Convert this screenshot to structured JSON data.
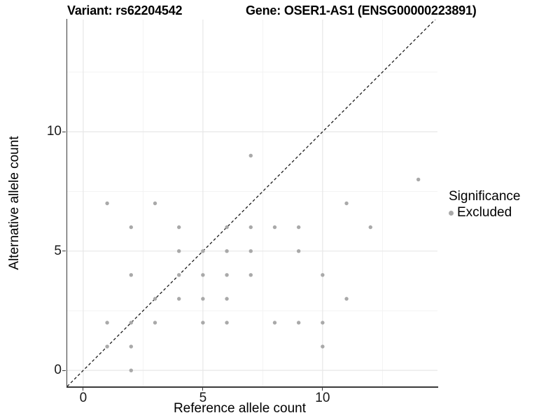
{
  "titles": {
    "variant": "Variant: rs62204542",
    "gene": "Gene: OSER1-AS1 (ENSG00000223891)"
  },
  "chart_data": {
    "type": "scatter",
    "xlabel": "Reference allele count",
    "ylabel": "Alternative allele count",
    "xlim": [
      -0.67,
      14.8
    ],
    "ylim": [
      -0.67,
      14.7
    ],
    "xticks": [
      0,
      5,
      10
    ],
    "yticks": [
      0,
      5,
      10
    ],
    "xminor": [
      2.5,
      7.5,
      12.5
    ],
    "yminor": [
      2.5,
      7.5,
      12.5
    ],
    "grid": true,
    "identity_line": {
      "equation": "y = x",
      "style": "dashed",
      "color": "#1a1a1a"
    },
    "point_color": "#a9a9a9",
    "series": [
      {
        "name": "Excluded",
        "color": "#a9a9a9",
        "points": [
          [
            2,
            0
          ],
          [
            1,
            1
          ],
          [
            2,
            1
          ],
          [
            10,
            1
          ],
          [
            1,
            2
          ],
          [
            2,
            2
          ],
          [
            3,
            2
          ],
          [
            5,
            2
          ],
          [
            6,
            2
          ],
          [
            8,
            2
          ],
          [
            9,
            2
          ],
          [
            10,
            2
          ],
          [
            3,
            3
          ],
          [
            4,
            3
          ],
          [
            5,
            3
          ],
          [
            6,
            3
          ],
          [
            11,
            3
          ],
          [
            2,
            4
          ],
          [
            4,
            4
          ],
          [
            5,
            4
          ],
          [
            6,
            4
          ],
          [
            7,
            4
          ],
          [
            10,
            4
          ],
          [
            4,
            5
          ],
          [
            5,
            5
          ],
          [
            6,
            5
          ],
          [
            7,
            5
          ],
          [
            9,
            5
          ],
          [
            2,
            6
          ],
          [
            4,
            6
          ],
          [
            6,
            6
          ],
          [
            7,
            6
          ],
          [
            8,
            6
          ],
          [
            9,
            6
          ],
          [
            12,
            6
          ],
          [
            1,
            7
          ],
          [
            3,
            7
          ],
          [
            11,
            7
          ],
          [
            14,
            8
          ],
          [
            7,
            9
          ]
        ]
      }
    ],
    "legend": {
      "title": "Significance",
      "position": "right",
      "items": [
        {
          "label": "Excluded",
          "color": "#a9a9a9"
        }
      ]
    },
    "colors": {
      "grid_major": "#e7e7e7",
      "grid_minor": "#f3f3f3",
      "axis_line": "#3a3a3a"
    }
  }
}
